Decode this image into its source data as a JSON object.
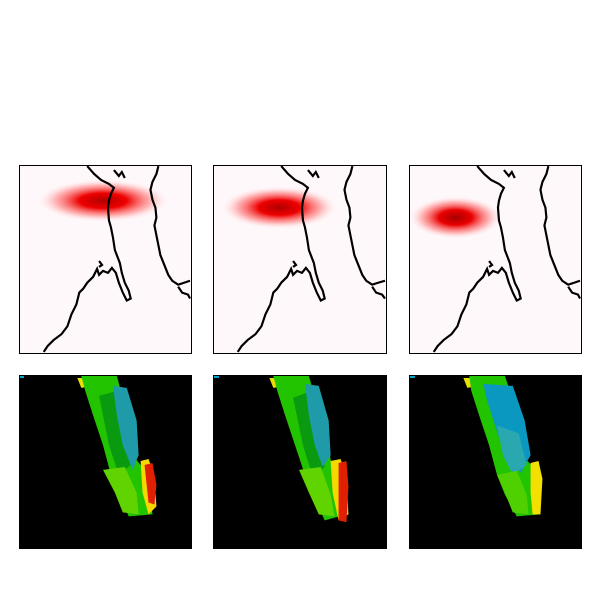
{
  "panels": {
    "top": [
      {
        "background": "#fff8fb",
        "blob_color": "#d40000",
        "coastline_color": "#000000"
      },
      {
        "background": "#fff8fb",
        "blob_color": "#d40000",
        "coastline_color": "#000000"
      },
      {
        "background": "#fff8fb",
        "blob_color": "#d40000",
        "coastline_color": "#000000"
      }
    ],
    "bottom": [
      {
        "background": "#000000",
        "palette": [
          "#ff0000",
          "#ffcc00",
          "#00aa00",
          "#00cc00",
          "#00aacc",
          "#3399aa"
        ]
      },
      {
        "background": "#000000",
        "palette": [
          "#ff0000",
          "#ffcc00",
          "#00aa00",
          "#00cc00",
          "#00aacc",
          "#3399aa"
        ]
      },
      {
        "background": "#000000",
        "palette": [
          "#ff0000",
          "#ffcc00",
          "#00aa00",
          "#00cc00",
          "#00aacc",
          "#3399aa"
        ]
      }
    ]
  }
}
